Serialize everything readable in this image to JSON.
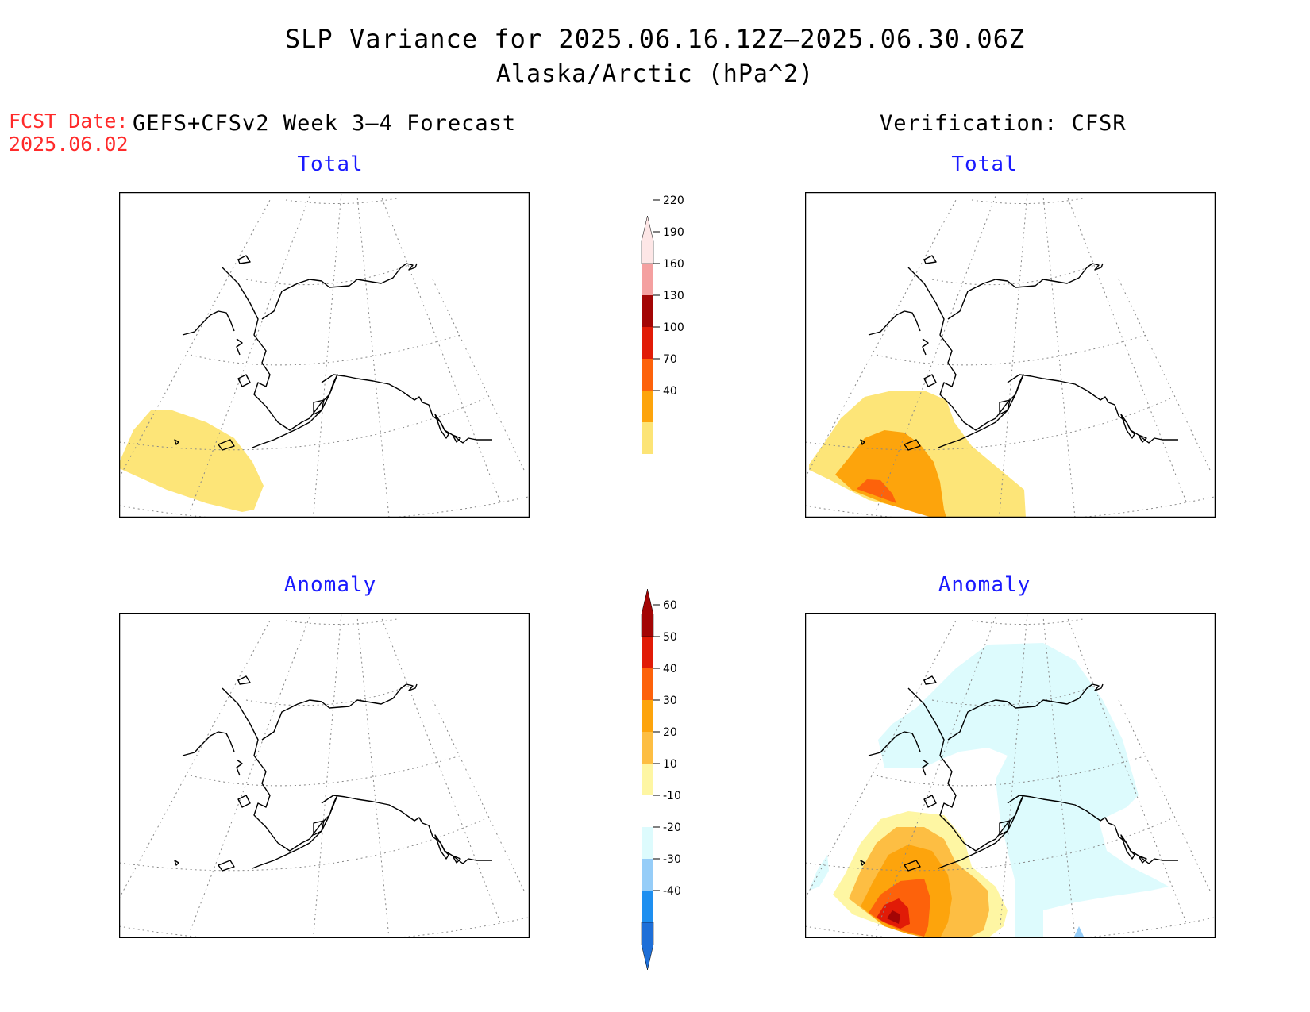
{
  "title": "SLP Variance for 2025.06.16.12Z—2025.06.30.06Z",
  "subtitle": "Alaska/Arctic (hPa^2)",
  "fcst_date_label": "FCST Date:",
  "fcst_date_value": "2025.06.02",
  "forecast_header": "GEFS+CFSv2 Week 3—4 Forecast",
  "verification_header": "Verification: CFSR",
  "panels": {
    "forecast_total": "Total",
    "verification_total": "Total",
    "forecast_anomaly": "Anomaly",
    "verification_anomaly": "Anomaly"
  },
  "colorbars": {
    "total": {
      "labels": [
        "40",
        "70",
        "100",
        "130",
        "160",
        "190",
        "220"
      ],
      "colors": [
        "#fce476",
        "#fda40c",
        "#fd620b",
        "#e11b07",
        "#a30505",
        "#f4a0a0",
        "#fde6e6"
      ]
    },
    "anomaly": {
      "labels": [
        "-40",
        "-30",
        "-20",
        "-10",
        "10",
        "20",
        "30",
        "40",
        "50",
        "60"
      ],
      "colors": [
        "#1e6fd8",
        "#1e8ff0",
        "#96cdf8",
        "#ddfbfd",
        "#ffffff",
        "#fef6a3",
        "#fdbe43",
        "#fda40c",
        "#fd620b",
        "#e11b07",
        "#a30505"
      ]
    }
  },
  "colors": {
    "fill_40_70": "#fde578",
    "fill_70_100": "#fda40c",
    "fill_100_130": "#fd620b",
    "anom_10_20": "#fef6a3",
    "anom_20_30": "#fdbe43",
    "anom_30_40": "#fda40c",
    "anom_40_50": "#fd620b",
    "anom_50_60": "#e11b07",
    "anom_neg_10_20": "#ddfbfd",
    "anom_neg_20_30": "#96cdf8"
  }
}
